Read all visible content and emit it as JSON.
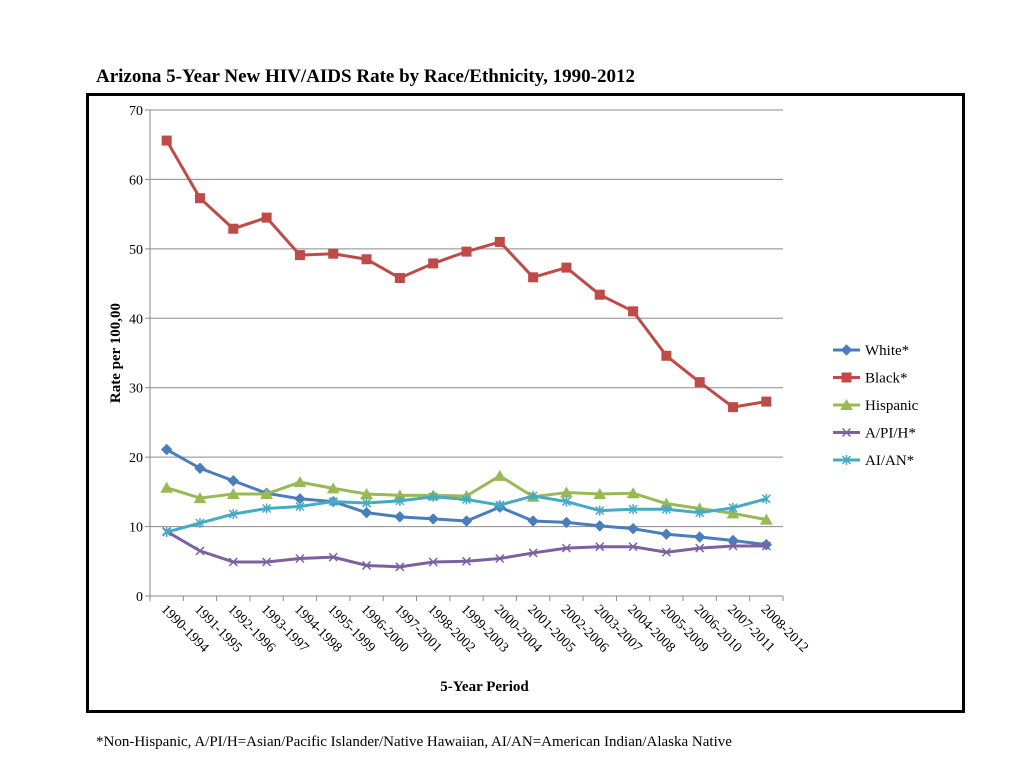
{
  "title": "Arizona 5-Year New HIV/AIDS Rate by Race/Ethnicity, 1990-2012",
  "footnote": "*Non-Hispanic, A/PI/H=Asian/Pacific Islander/Native Hawaiian, AI/AN=American Indian/Alaska Native",
  "chart_data": {
    "type": "line",
    "xlabel": "5-Year Period",
    "ylabel": "Rate per 100,00",
    "ylim": [
      0,
      70
    ],
    "yticks": [
      0,
      10,
      20,
      30,
      40,
      50,
      60,
      70
    ],
    "grid": "horizontal",
    "legend_position": "right",
    "categories": [
      "1990-1994",
      "1991-1995",
      "1992-1996",
      "1993-1997",
      "1994-1998",
      "1995-1999",
      "1996-2000",
      "1997-2001",
      "1998-2002",
      "1999-2003",
      "2000-2004",
      "2001-2005",
      "2002-2006",
      "2003-2007",
      "2004-2008",
      "2005-2009",
      "2006-2010",
      "2007-2011",
      "2008-2012"
    ],
    "series": [
      {
        "name": "White*",
        "color": "#4a7ebb",
        "marker": "diamond",
        "values": [
          21.1,
          18.4,
          16.6,
          14.8,
          14.0,
          13.6,
          12.0,
          11.4,
          11.1,
          10.8,
          12.8,
          10.8,
          10.6,
          10.1,
          9.7,
          8.9,
          8.5,
          8.0,
          7.4
        ]
      },
      {
        "name": "Black*",
        "color": "#be4b48",
        "marker": "square",
        "values": [
          65.6,
          57.3,
          52.9,
          54.5,
          49.1,
          49.3,
          48.5,
          45.8,
          47.9,
          49.6,
          51.0,
          45.9,
          47.3,
          43.4,
          41.0,
          34.6,
          30.8,
          27.2,
          28.0
        ]
      },
      {
        "name": "Hispanic",
        "color": "#98b954",
        "marker": "triangle",
        "values": [
          15.6,
          14.1,
          14.7,
          14.7,
          16.4,
          15.5,
          14.7,
          14.5,
          14.5,
          14.4,
          17.3,
          14.3,
          14.9,
          14.7,
          14.8,
          13.3,
          12.6,
          11.9,
          11.0
        ]
      },
      {
        "name": "A/PI/H*",
        "color": "#7d60a0",
        "marker": "x",
        "values": [
          9.3,
          6.5,
          4.9,
          4.9,
          5.4,
          5.6,
          4.4,
          4.2,
          4.9,
          5.0,
          5.4,
          6.2,
          6.9,
          7.1,
          7.1,
          6.3,
          6.9,
          7.2,
          7.2
        ]
      },
      {
        "name": "AI/AN*",
        "color": "#46aac5",
        "marker": "star",
        "values": [
          9.2,
          10.5,
          11.8,
          12.6,
          12.9,
          13.6,
          13.4,
          13.7,
          14.3,
          13.9,
          13.1,
          14.4,
          13.6,
          12.3,
          12.5,
          12.5,
          12.0,
          12.7,
          14.0
        ]
      }
    ]
  }
}
